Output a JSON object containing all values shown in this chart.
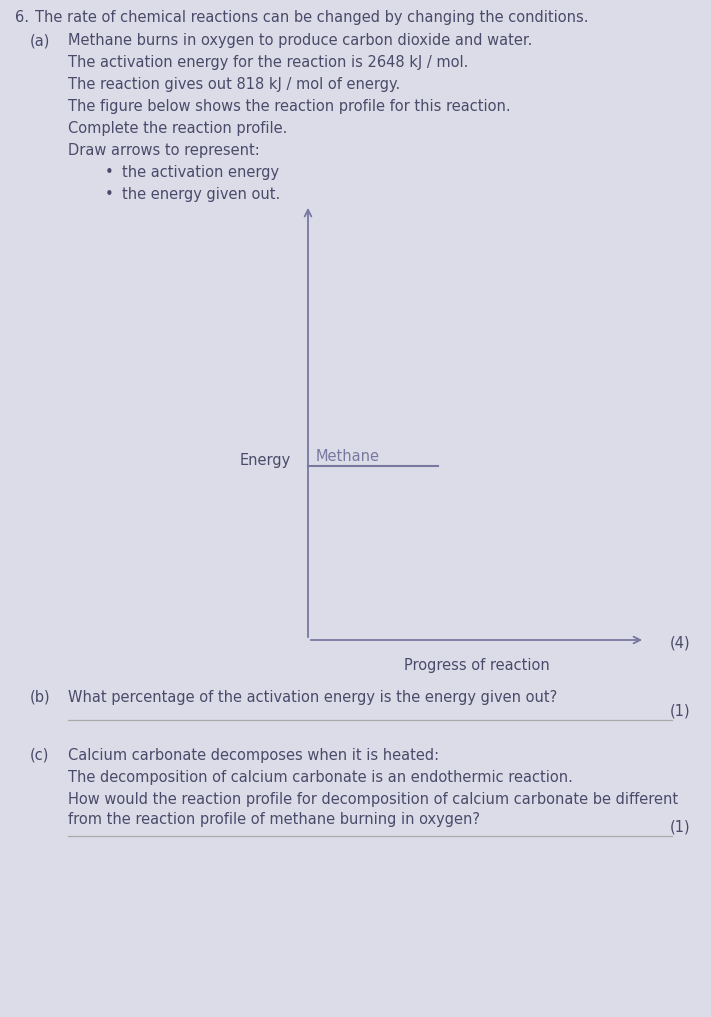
{
  "title_number": "6.",
  "title_text": "The rate of chemical reactions can be changed by changing the conditions.",
  "part_a_label": "(a)",
  "part_a_text": "Methane burns in oxygen to produce carbon dioxide and water.",
  "activation_energy_text": "The activation energy for the reaction is 2648 kJ / mol.",
  "energy_given_text": "The reaction gives out 818 kJ / mol of energy.",
  "figure_text": "The figure below shows the reaction profile for this reaction.",
  "complete_text": "Complete the reaction profile.",
  "draw_text": "Draw arrows to represent:",
  "bullet1": "the activation energy",
  "bullet2": "the energy given out.",
  "y_label": "Energy",
  "x_label": "Progress of reaction",
  "methane_label": "Methane",
  "part_b_label": "(b)",
  "part_b_text": "What percentage of the activation energy is the energy given out?",
  "part_c_label": "(c)",
  "part_c_text1": "Calcium carbonate decomposes when it is heated:",
  "part_c_text2": "The decomposition of calcium carbonate is an endothermic reaction.",
  "part_c_text3": "How would the reaction profile for decomposition of calcium carbonate be different",
  "part_c_text4": "from the reaction profile of methane burning in oxygen?",
  "marks_a": "(4)",
  "marks_b": "(1)",
  "marks_c": "(1)",
  "axis_color": "#7878a0",
  "text_color": "#4a4a6a",
  "line_color": "#7878a0",
  "page_bg": "#dcdce8"
}
